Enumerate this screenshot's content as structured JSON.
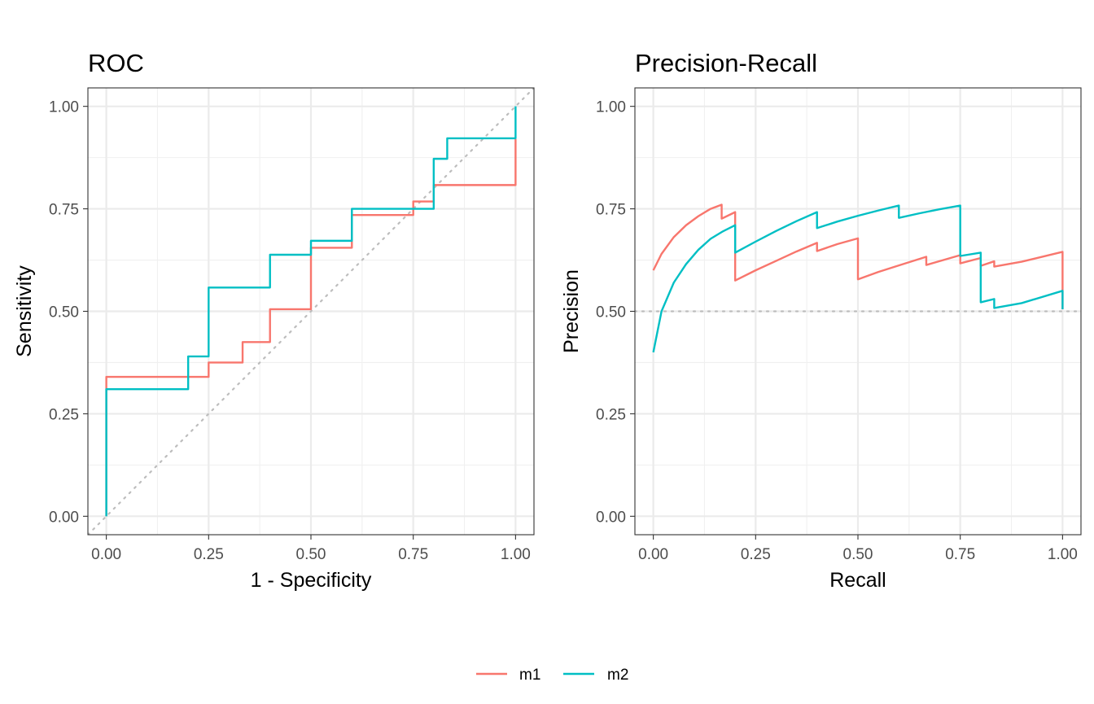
{
  "chart_data": [
    {
      "type": "line",
      "title": "ROC",
      "xlabel": "1 - Specificity",
      "ylabel": "Sensitivity",
      "xlim": [
        -0.045,
        1.045
      ],
      "ylim": [
        -0.045,
        1.045
      ],
      "xticks": [
        "0.00",
        "0.25",
        "0.50",
        "0.75",
        "1.00"
      ],
      "yticks": [
        "0.00",
        "0.25",
        "0.50",
        "0.75",
        "1.00"
      ],
      "grid": true,
      "reference_line": {
        "type": "diagonal",
        "style": "dotted",
        "from": [
          -0.045,
          -0.045
        ],
        "to": [
          1.045,
          1.045
        ]
      },
      "series": [
        {
          "name": "m1",
          "color": "#F8766D",
          "x": [
            0,
            0,
            0.25,
            0.25,
            0.333,
            0.333,
            0.4,
            0.4,
            0.5,
            0.5,
            0.6,
            0.6,
            0.75,
            0.75,
            0.8,
            0.8,
            1.0,
            1.0
          ],
          "y": [
            0,
            0.34,
            0.34,
            0.375,
            0.375,
            0.425,
            0.425,
            0.505,
            0.505,
            0.655,
            0.655,
            0.735,
            0.735,
            0.768,
            0.768,
            0.808,
            0.808,
            0.92
          ]
        },
        {
          "name": "m2",
          "color": "#00BFC4",
          "x": [
            0,
            0,
            0.2,
            0.2,
            0.25,
            0.25,
            0.4,
            0.4,
            0.5,
            0.5,
            0.6,
            0.6,
            0.8,
            0.8,
            0.833,
            0.833,
            1.0,
            1.0
          ],
          "y": [
            0,
            0.31,
            0.31,
            0.39,
            0.39,
            0.558,
            0.558,
            0.638,
            0.638,
            0.672,
            0.672,
            0.75,
            0.75,
            0.872,
            0.872,
            0.922,
            0.922,
            1.0
          ]
        }
      ]
    },
    {
      "type": "line",
      "title": "Precision-Recall",
      "xlabel": "Recall",
      "ylabel": "Precision",
      "xlim": [
        -0.045,
        1.045
      ],
      "ylim": [
        -0.045,
        1.045
      ],
      "xticks": [
        "0.00",
        "0.25",
        "0.50",
        "0.75",
        "1.00"
      ],
      "yticks": [
        "0.00",
        "0.25",
        "0.50",
        "0.75",
        "1.00"
      ],
      "grid": true,
      "reference_line": {
        "type": "horizontal",
        "style": "dotted",
        "y": 0.5
      },
      "series": [
        {
          "name": "m1",
          "color": "#F8766D",
          "x": [
            0,
            0.02,
            0.05,
            0.08,
            0.11,
            0.14,
            0.167,
            0.167,
            0.2,
            0.2,
            0.25,
            0.3,
            0.35,
            0.4,
            0.4,
            0.45,
            0.5,
            0.5,
            0.55,
            0.6,
            0.667,
            0.667,
            0.75,
            0.75,
            0.8,
            0.8,
            0.833,
            0.833,
            0.9,
            1.0,
            1.0
          ],
          "y": [
            0.6,
            0.64,
            0.681,
            0.71,
            0.732,
            0.75,
            0.76,
            0.726,
            0.742,
            0.575,
            0.6,
            0.623,
            0.646,
            0.667,
            0.647,
            0.664,
            0.678,
            0.578,
            0.596,
            0.612,
            0.633,
            0.613,
            0.637,
            0.617,
            0.63,
            0.611,
            0.622,
            0.609,
            0.621,
            0.645,
            0.505
          ]
        },
        {
          "name": "m2",
          "color": "#00BFC4",
          "x": [
            0,
            0.02,
            0.05,
            0.08,
            0.11,
            0.14,
            0.17,
            0.2,
            0.2,
            0.25,
            0.3,
            0.35,
            0.4,
            0.4,
            0.45,
            0.5,
            0.55,
            0.6,
            0.6,
            0.65,
            0.7,
            0.75,
            0.75,
            0.8,
            0.8,
            0.833,
            0.833,
            0.9,
            1.0,
            1.0
          ],
          "y": [
            0.4,
            0.5,
            0.57,
            0.615,
            0.65,
            0.677,
            0.695,
            0.71,
            0.643,
            0.67,
            0.696,
            0.72,
            0.742,
            0.703,
            0.719,
            0.733,
            0.746,
            0.758,
            0.728,
            0.739,
            0.749,
            0.758,
            0.635,
            0.643,
            0.522,
            0.53,
            0.508,
            0.52,
            0.55,
            0.505
          ]
        }
      ]
    }
  ],
  "legend": {
    "position": "bottom",
    "items": [
      {
        "name": "m1",
        "color": "#F8766D"
      },
      {
        "name": "m2",
        "color": "#00BFC4"
      }
    ]
  }
}
